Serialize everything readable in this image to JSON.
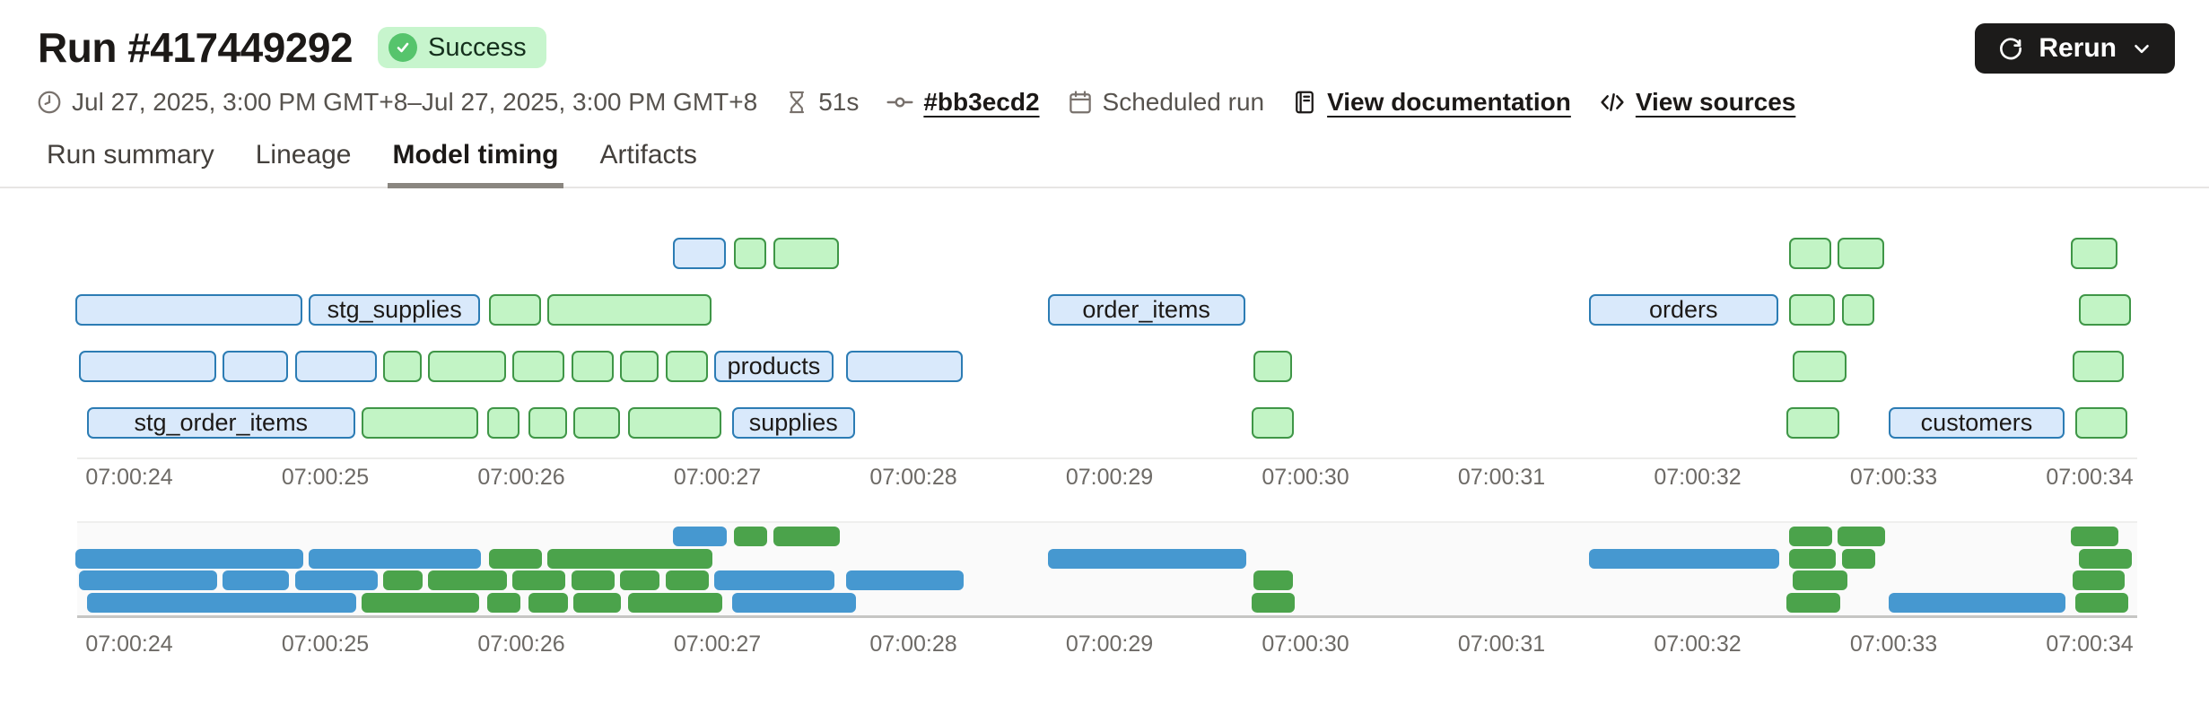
{
  "colors": {
    "status_bg": "#c7f5cd",
    "status_icon": "#56c46c",
    "button_bg": "#1c1b1a",
    "tab_underline": "#8a8680"
  },
  "header": {
    "title": "Run #417449292",
    "status": {
      "label": "Success"
    },
    "meta": [
      {
        "icon": "clock-icon",
        "text": "Jul 27, 2025, 3:00 PM GMT+8–Jul 27, 2025, 3:00 PM GMT+8"
      },
      {
        "icon": "hourglass-icon",
        "text": "51s"
      },
      {
        "icon": "commit-icon",
        "text": "#bb3ecd2"
      },
      {
        "icon": "calendar-icon",
        "text": "Scheduled run"
      },
      {
        "icon": "document-icon",
        "text": "View documentation"
      },
      {
        "icon": "code-icon",
        "text": "View sources"
      }
    ],
    "rerun": {
      "label": "Rerun"
    }
  },
  "tabs": [
    {
      "label": "Run summary",
      "active": false
    },
    {
      "label": "Lineage",
      "active": false
    },
    {
      "label": "Model timing",
      "active": true
    },
    {
      "label": "Artifacts",
      "active": false
    }
  ],
  "chart_data": {
    "type": "gantt",
    "title": "Model timing",
    "time_axis": {
      "tick_labels": [
        "07:00:24",
        "07:00:25",
        "07:00:26",
        "07:00:27",
        "07:00:28",
        "07:00:29",
        "07:00:30",
        "07:00:31",
        "07:00:32",
        "07:00:33",
        "07:00:34"
      ],
      "seconds_per_tick": 1,
      "note": "bar start/end are seconds after 07:00:24"
    },
    "colors": {
      "model_fill": "#d9e9fb",
      "model_border": "#2c7cb4",
      "test_fill": "#c2f4c5",
      "test_border": "#3f9647",
      "overview_model": "#4698d0",
      "overview_test": "#4ba34b"
    },
    "legend": {
      "model": "blue",
      "test": "green"
    },
    "rows": [
      {
        "bars": [
          {
            "start": 2.77,
            "end": 3.06,
            "kind": "model"
          },
          {
            "start": 3.08,
            "end": 3.27,
            "kind": "test"
          },
          {
            "start": 3.28,
            "end": 3.64,
            "kind": "test"
          },
          {
            "start": 8.46,
            "end": 8.7,
            "kind": "test"
          },
          {
            "start": 8.71,
            "end": 8.97,
            "kind": "test"
          },
          {
            "start": 9.9,
            "end": 10.16,
            "kind": "test"
          }
        ]
      },
      {
        "bars": [
          {
            "start": -0.28,
            "end": 0.9,
            "kind": "model"
          },
          {
            "start": 0.91,
            "end": 1.81,
            "kind": "model",
            "label": "stg_supplies"
          },
          {
            "start": 1.83,
            "end": 2.12,
            "kind": "test"
          },
          {
            "start": 2.13,
            "end": 2.99,
            "kind": "test"
          },
          {
            "start": 4.68,
            "end": 5.71,
            "kind": "model",
            "label": "order_items"
          },
          {
            "start": 7.44,
            "end": 8.43,
            "kind": "model",
            "label": "orders"
          },
          {
            "start": 8.46,
            "end": 8.72,
            "kind": "test"
          },
          {
            "start": 8.73,
            "end": 8.92,
            "kind": "test"
          },
          {
            "start": 9.94,
            "end": 10.23,
            "kind": "test"
          }
        ]
      },
      {
        "bars": [
          {
            "start": -0.26,
            "end": 0.46,
            "kind": "model"
          },
          {
            "start": 0.47,
            "end": 0.83,
            "kind": "model"
          },
          {
            "start": 0.84,
            "end": 1.28,
            "kind": "model"
          },
          {
            "start": 1.29,
            "end": 1.51,
            "kind": "test"
          },
          {
            "start": 1.52,
            "end": 1.94,
            "kind": "test"
          },
          {
            "start": 1.95,
            "end": 2.24,
            "kind": "test"
          },
          {
            "start": 2.25,
            "end": 2.49,
            "kind": "test"
          },
          {
            "start": 2.5,
            "end": 2.72,
            "kind": "test"
          },
          {
            "start": 2.73,
            "end": 2.97,
            "kind": "test"
          },
          {
            "start": 2.98,
            "end": 3.61,
            "kind": "model",
            "label": "products"
          },
          {
            "start": 3.65,
            "end": 4.27,
            "kind": "model"
          },
          {
            "start": 5.73,
            "end": 5.95,
            "kind": "test"
          },
          {
            "start": 8.48,
            "end": 8.78,
            "kind": "test"
          },
          {
            "start": 9.91,
            "end": 10.19,
            "kind": "test"
          }
        ]
      },
      {
        "bars": [
          {
            "start": -0.22,
            "end": 1.17,
            "kind": "model",
            "label": "stg_order_items"
          },
          {
            "start": 1.18,
            "end": 1.8,
            "kind": "test"
          },
          {
            "start": 1.82,
            "end": 2.01,
            "kind": "test"
          },
          {
            "start": 2.03,
            "end": 2.25,
            "kind": "test"
          },
          {
            "start": 2.26,
            "end": 2.52,
            "kind": "test"
          },
          {
            "start": 2.54,
            "end": 3.04,
            "kind": "test"
          },
          {
            "start": 3.07,
            "end": 3.72,
            "kind": "model",
            "label": "supplies"
          },
          {
            "start": 5.72,
            "end": 5.96,
            "kind": "test"
          },
          {
            "start": 8.45,
            "end": 8.74,
            "kind": "test"
          },
          {
            "start": 8.97,
            "end": 9.89,
            "kind": "model",
            "label": "customers"
          },
          {
            "start": 9.92,
            "end": 10.21,
            "kind": "test"
          }
        ]
      }
    ]
  }
}
